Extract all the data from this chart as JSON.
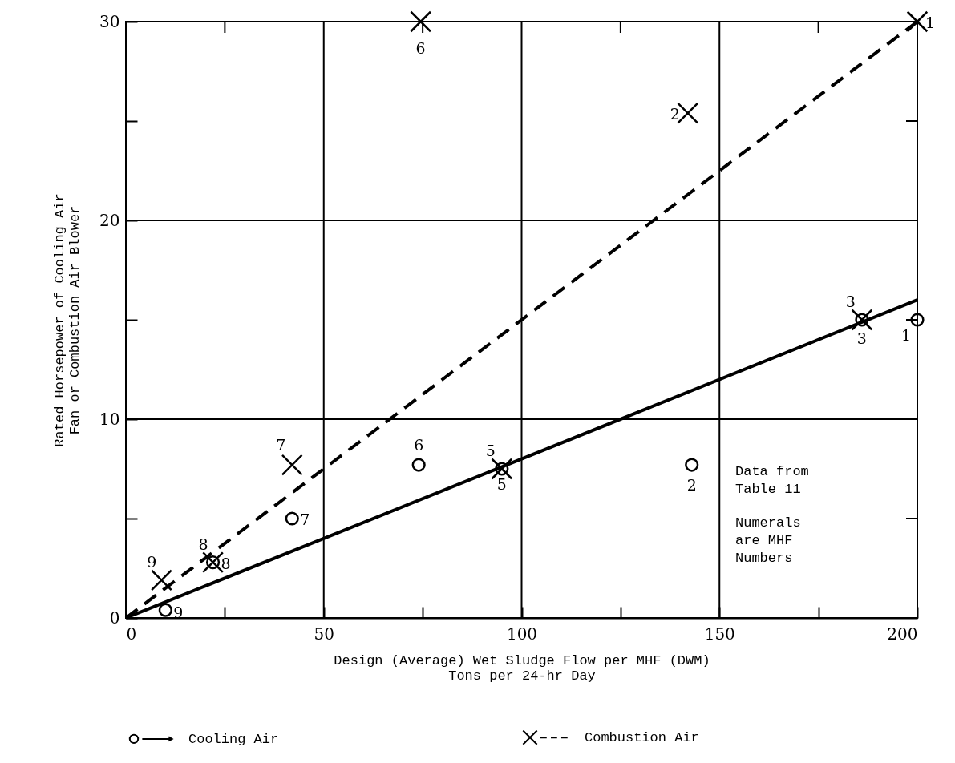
{
  "chart_data": {
    "type": "scatter",
    "xlabel": "Design (Average) Wet Sludge Flow per MHF (DWM)\nTons per 24-hr Day",
    "ylabel": "Rated Horsepower of Cooling Air\nFan or Combustion Air Blower",
    "xlim": [
      0,
      200
    ],
    "ylim": [
      0,
      30
    ],
    "xticks": [
      0,
      {
        "value": 25,
        "label": null
      },
      50,
      {
        "value": 75,
        "label": null
      },
      100,
      {
        "value": 125,
        "label": null
      },
      150,
      {
        "value": 175,
        "label": null
      },
      200
    ],
    "yticks": [
      0,
      {
        "value": 5,
        "label": null
      },
      10,
      {
        "value": 15,
        "label": null
      },
      20,
      {
        "value": 25,
        "label": null
      },
      30
    ],
    "grid": true,
    "legend": "bottom",
    "series": [
      {
        "name": "Cooling Air",
        "type": "scatter",
        "marker": "circle",
        "color": "#000000",
        "x": [
          200,
          143,
          186,
          95,
          74,
          42,
          22,
          10
        ],
        "values": [
          15,
          7.7,
          15,
          7.5,
          7.7,
          5.0,
          2.8,
          0.4
        ]
      },
      {
        "type": "line",
        "line_style": "solid",
        "color": "#000000",
        "x": [
          0,
          200
        ],
        "values": [
          0,
          16
        ]
      },
      {
        "name": "Combustion Air",
        "type": "scatter",
        "marker": "cross",
        "color": "#000000",
        "x": [
          200,
          142,
          186,
          95,
          74.5,
          42,
          22,
          9
        ],
        "values": [
          30,
          25.4,
          15,
          7.5,
          30,
          7.7,
          2.8,
          1.9
        ]
      },
      {
        "type": "line",
        "line_style": "dashed",
        "color": "#000000",
        "x": [
          0,
          200
        ],
        "values": [
          0,
          30
        ]
      }
    ],
    "annotations": [
      {
        "text": "1",
        "x": 200,
        "y": 30
      },
      {
        "text": "2",
        "x": 142,
        "y": 25.4
      },
      {
        "text": "3",
        "x": 186,
        "y": 15
      },
      {
        "text": "5",
        "x": 95,
        "y": 7.5
      },
      {
        "text": "6",
        "x": 74.5,
        "y": 30
      },
      {
        "text": "7",
        "x": 42,
        "y": 7.7
      },
      {
        "text": "8",
        "x": 22,
        "y": 2.8
      },
      {
        "text": "9",
        "x": 9,
        "y": 1.9
      },
      {
        "text": "1",
        "x": 200,
        "y": 15
      },
      {
        "text": "2",
        "x": 143,
        "y": 7.7
      },
      {
        "text": "3",
        "x": 186,
        "y": 15
      },
      {
        "text": "5",
        "x": 95,
        "y": 7.5
      },
      {
        "text": "6",
        "x": 74,
        "y": 7.7
      },
      {
        "text": "7",
        "x": 42,
        "y": 5.0
      },
      {
        "text": "8",
        "x": 22,
        "y": 2.8
      },
      {
        "text": "9",
        "x": 10,
        "y": 0.4
      },
      "Data from\nTable 11",
      "Numerals\nare MHF\nNumbers"
    ]
  }
}
